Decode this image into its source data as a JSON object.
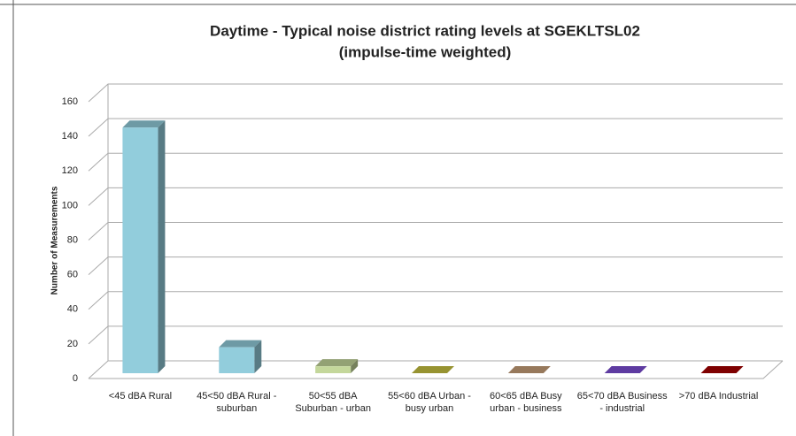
{
  "chart_data": {
    "type": "bar3d",
    "title": "Daytime - Typical noise district rating levels at SGEKLTSL02",
    "subtitle": "(impulse-time weighted)",
    "y_label": "Number of Measurements",
    "categories": [
      "<45 dBA Rural",
      "45<50 dBA Rural - suburban",
      "50<55 dBA Suburban - urban",
      "55<60 dBA Urban - busy urban",
      "60<65 dBA Busy urban - business",
      "65<70 dBA Business - industrial",
      ">70 dBA Industrial"
    ],
    "values": [
      142,
      15,
      4,
      0,
      0,
      0,
      0
    ],
    "colors": [
      "#92cddc",
      "#92cddc",
      "#c4d79b",
      "#c9c441",
      "#c9a17b",
      "#7d4fd6",
      "#a80000"
    ],
    "ylim": [
      0,
      160
    ],
    "yticks": [
      0,
      20,
      40,
      60,
      80,
      100,
      120,
      140,
      160
    ],
    "grid": true
  }
}
